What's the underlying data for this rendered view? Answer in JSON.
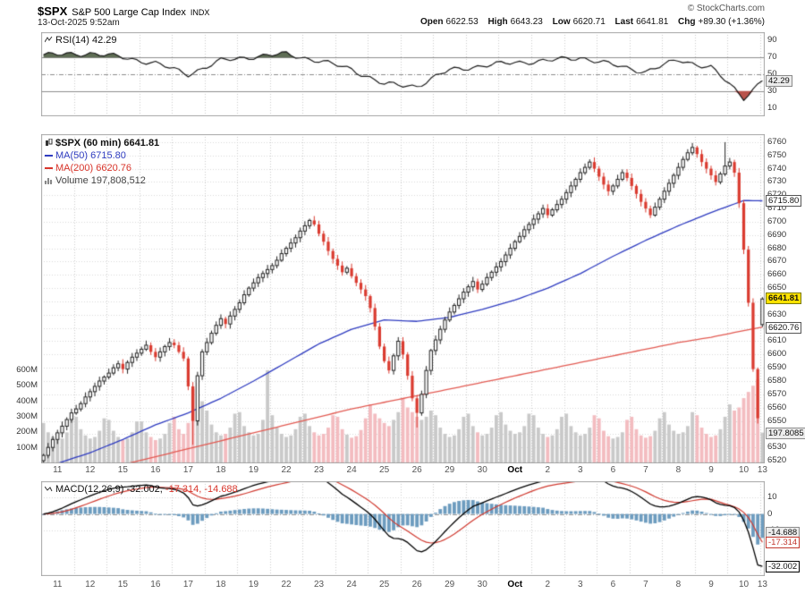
{
  "header": {
    "symbol": "$SPX",
    "index_name": "S&P 500 Large Cap Index",
    "exchange": "INDX",
    "datetime": "13-Oct-2025 9:52am",
    "copyright": "© StockCharts.com",
    "quote": {
      "open_label": "Open",
      "open": "6622.53",
      "high_label": "High",
      "high": "6643.23",
      "low_label": "Low",
      "low": "6620.71",
      "last_label": "Last",
      "last": "6641.81",
      "chg_label": "Chg",
      "chg": "+89.30 (+1.36%)"
    }
  },
  "rsi_panel": {
    "legend": "RSI(14) 42.29",
    "value": "42.29"
  },
  "main_panel": {
    "legend_symbol": "$SPX (60 min) 6641.81",
    "legend_ma50": "MA(50) 6715.80",
    "legend_ma200": "MA(200) 6620.76",
    "legend_volume": "Volume 197,808,512",
    "last_label": "6641.81",
    "ma50_label": "6715.80",
    "ma200_label": "6620.76",
    "volume_label": "197.8085"
  },
  "macd_panel": {
    "legend_name": "MACD(12,26,9)",
    "legend_macd": "-32.002,",
    "legend_signal": "-17.314,",
    "legend_hist": "-14.688",
    "macd_label": "-32.002",
    "signal_label": "-17.314",
    "hist_label": "-14.688"
  },
  "chart_data": {
    "type": "candlestick",
    "title": "$SPX (60 min)",
    "symbol": "$SPX",
    "interval": "60 min",
    "last": 6641.81,
    "days": [
      "11",
      "12",
      "15",
      "16",
      "17",
      "18",
      "19",
      "22",
      "23",
      "24",
      "25",
      "26",
      "29",
      "30",
      "Oct",
      "2",
      "3",
      "6",
      "7",
      "8",
      "9",
      "10",
      "13"
    ],
    "bold_day": "Oct",
    "candles_per_day": 7,
    "closes": [
      6524,
      6530,
      6536,
      6541,
      6546,
      6551,
      6556,
      6559,
      6563,
      6568,
      6572,
      6576,
      6580,
      6583,
      6586,
      6590,
      6593,
      6589,
      6594,
      6598,
      6601,
      6604,
      6607,
      6602,
      6598,
      6602,
      6606,
      6609,
      6607,
      6602,
      6597,
      6576,
      6550,
      6584,
      6602,
      6609,
      6616,
      6622,
      6627,
      6623,
      6629,
      6634,
      6639,
      6645,
      6650,
      6654,
      6658,
      6661,
      6664,
      6667,
      6671,
      6676,
      6680,
      6684,
      6688,
      6693,
      6697,
      6701,
      6698,
      6691,
      6685,
      6678,
      6672,
      6667,
      6662,
      6665,
      6659,
      6654,
      6649,
      6644,
      6635,
      6621,
      6606,
      6595,
      6588,
      6599,
      6610,
      6600,
      6584,
      6567,
      6556,
      6570,
      6588,
      6603,
      6611,
      6619,
      6626,
      6632,
      6637,
      6642,
      6647,
      6651,
      6655,
      6649,
      6653,
      6658,
      6662,
      6666,
      6670,
      6675,
      6680,
      6685,
      6689,
      6694,
      6698,
      6702,
      6706,
      6710,
      6705,
      6709,
      6713,
      6717,
      6722,
      6727,
      6732,
      6737,
      6741,
      6745,
      6740,
      6734,
      6728,
      6723,
      6727,
      6732,
      6737,
      6733,
      6727,
      6721,
      6715,
      6710,
      6705,
      6711,
      6717,
      6723,
      6729,
      6735,
      6741,
      6747,
      6752,
      6756,
      6751,
      6745,
      6740,
      6735,
      6730,
      6736,
      6742,
      6745,
      6737,
      6714,
      6679,
      6639,
      6589,
      6552,
      6641.81
    ],
    "volumes_m": [
      260,
      200,
      170,
      150,
      160,
      200,
      280,
      300,
      220,
      180,
      160,
      170,
      210,
      290,
      280,
      210,
      170,
      150,
      160,
      200,
      270,
      270,
      200,
      170,
      150,
      160,
      190,
      260,
      300,
      220,
      190,
      260,
      480,
      520,
      400,
      340,
      250,
      200,
      180,
      190,
      230,
      320,
      330,
      240,
      200,
      180,
      190,
      280,
      600,
      310,
      230,
      190,
      170,
      180,
      220,
      300,
      320,
      240,
      200,
      180,
      190,
      230,
      310,
      300,
      220,
      185,
      165,
      175,
      215,
      290,
      380,
      320,
      290,
      260,
      240,
      280,
      330,
      420,
      360,
      330,
      300,
      280,
      300,
      340,
      310,
      230,
      190,
      170,
      180,
      220,
      300,
      320,
      240,
      200,
      180,
      190,
      230,
      310,
      330,
      250,
      210,
      190,
      200,
      240,
      320,
      310,
      230,
      190,
      170,
      180,
      220,
      300,
      320,
      240,
      200,
      180,
      190,
      230,
      310,
      290,
      210,
      175,
      160,
      170,
      200,
      280,
      300,
      220,
      180,
      165,
      175,
      210,
      290,
      330,
      250,
      210,
      190,
      200,
      240,
      330,
      310,
      230,
      190,
      170,
      180,
      220,
      300,
      380,
      340,
      360,
      420,
      460,
      500,
      540,
      197.8
    ],
    "open_overrides": {
      "154": 6622.53
    },
    "high_overrides": {
      "146": 6760,
      "154": 6643.23
    },
    "low_overrides": {
      "32": 6532,
      "80": 6545,
      "153": 6548,
      "154": 6620.71
    },
    "price_axis": {
      "min": 6520,
      "max": 6760,
      "step": 10,
      "plot_min": 6518,
      "plot_max": 6766
    },
    "volume_axis": {
      "min": 100,
      "max": 600,
      "step": 100,
      "suffix": "M"
    },
    "ma50": {
      "label": "MA(50)",
      "last": 6715.8,
      "day_values": [
        6518,
        6526,
        6536,
        6547,
        6556,
        6567,
        6580,
        6594,
        6608,
        6619,
        6626,
        6625,
        6628,
        6634,
        6641,
        6650,
        6661,
        6674,
        6686,
        6697,
        6707,
        6716,
        6715.8
      ]
    },
    "ma200": {
      "label": "MA(200)",
      "last": 6620.76,
      "day_values": [
        6505,
        6511,
        6517,
        6523,
        6529,
        6535,
        6541,
        6547,
        6553,
        6559,
        6564,
        6569,
        6574,
        6579,
        6584,
        6589,
        6594,
        6599,
        6604,
        6609,
        6613,
        6618,
        6620.76
      ]
    },
    "rsi": {
      "label": "RSI(14)",
      "period": 14,
      "last": 42.29,
      "overbought": 70,
      "midline": 50,
      "oversold": 30,
      "ticks": [
        90,
        70,
        50,
        30,
        10
      ],
      "day_values": [
        73,
        75,
        70,
        63,
        50,
        66,
        71,
        74,
        66,
        56,
        38,
        36,
        55,
        60,
        64,
        66,
        70,
        61,
        53,
        67,
        58,
        22,
        42.29
      ]
    },
    "macd": {
      "label": "MACD(12,26,9)",
      "fast": 12,
      "slow": 26,
      "signal_period": 9,
      "last_macd": -32.002,
      "last_signal": -17.314,
      "last_hist": -14.688,
      "ticks": [
        10,
        0,
        -10
      ],
      "plot_min": -38,
      "plot_max": 20
    },
    "colors": {
      "up_stroke": "#222222",
      "up_fill": "#ffffff",
      "down": "#da3b30",
      "vol_up": "#c9c9c9",
      "vol_down": "#f3bcc0",
      "ma50": "#2f3cc0",
      "ma200": "#e25a52",
      "rsi_line": "#1a1a1a",
      "rsi_over_fill": "#5f6e55",
      "rsi_under_fill": "#b9534b",
      "macd_line": "#000000",
      "signal_line": "#d03a30",
      "hist": "#6d9cbf",
      "grid": "#d8d8d8",
      "day_grid": "#cccccc",
      "band": "#8c8c8c",
      "panel_border": "#a6a6a6",
      "last_box_bg": "#ffe200"
    }
  }
}
